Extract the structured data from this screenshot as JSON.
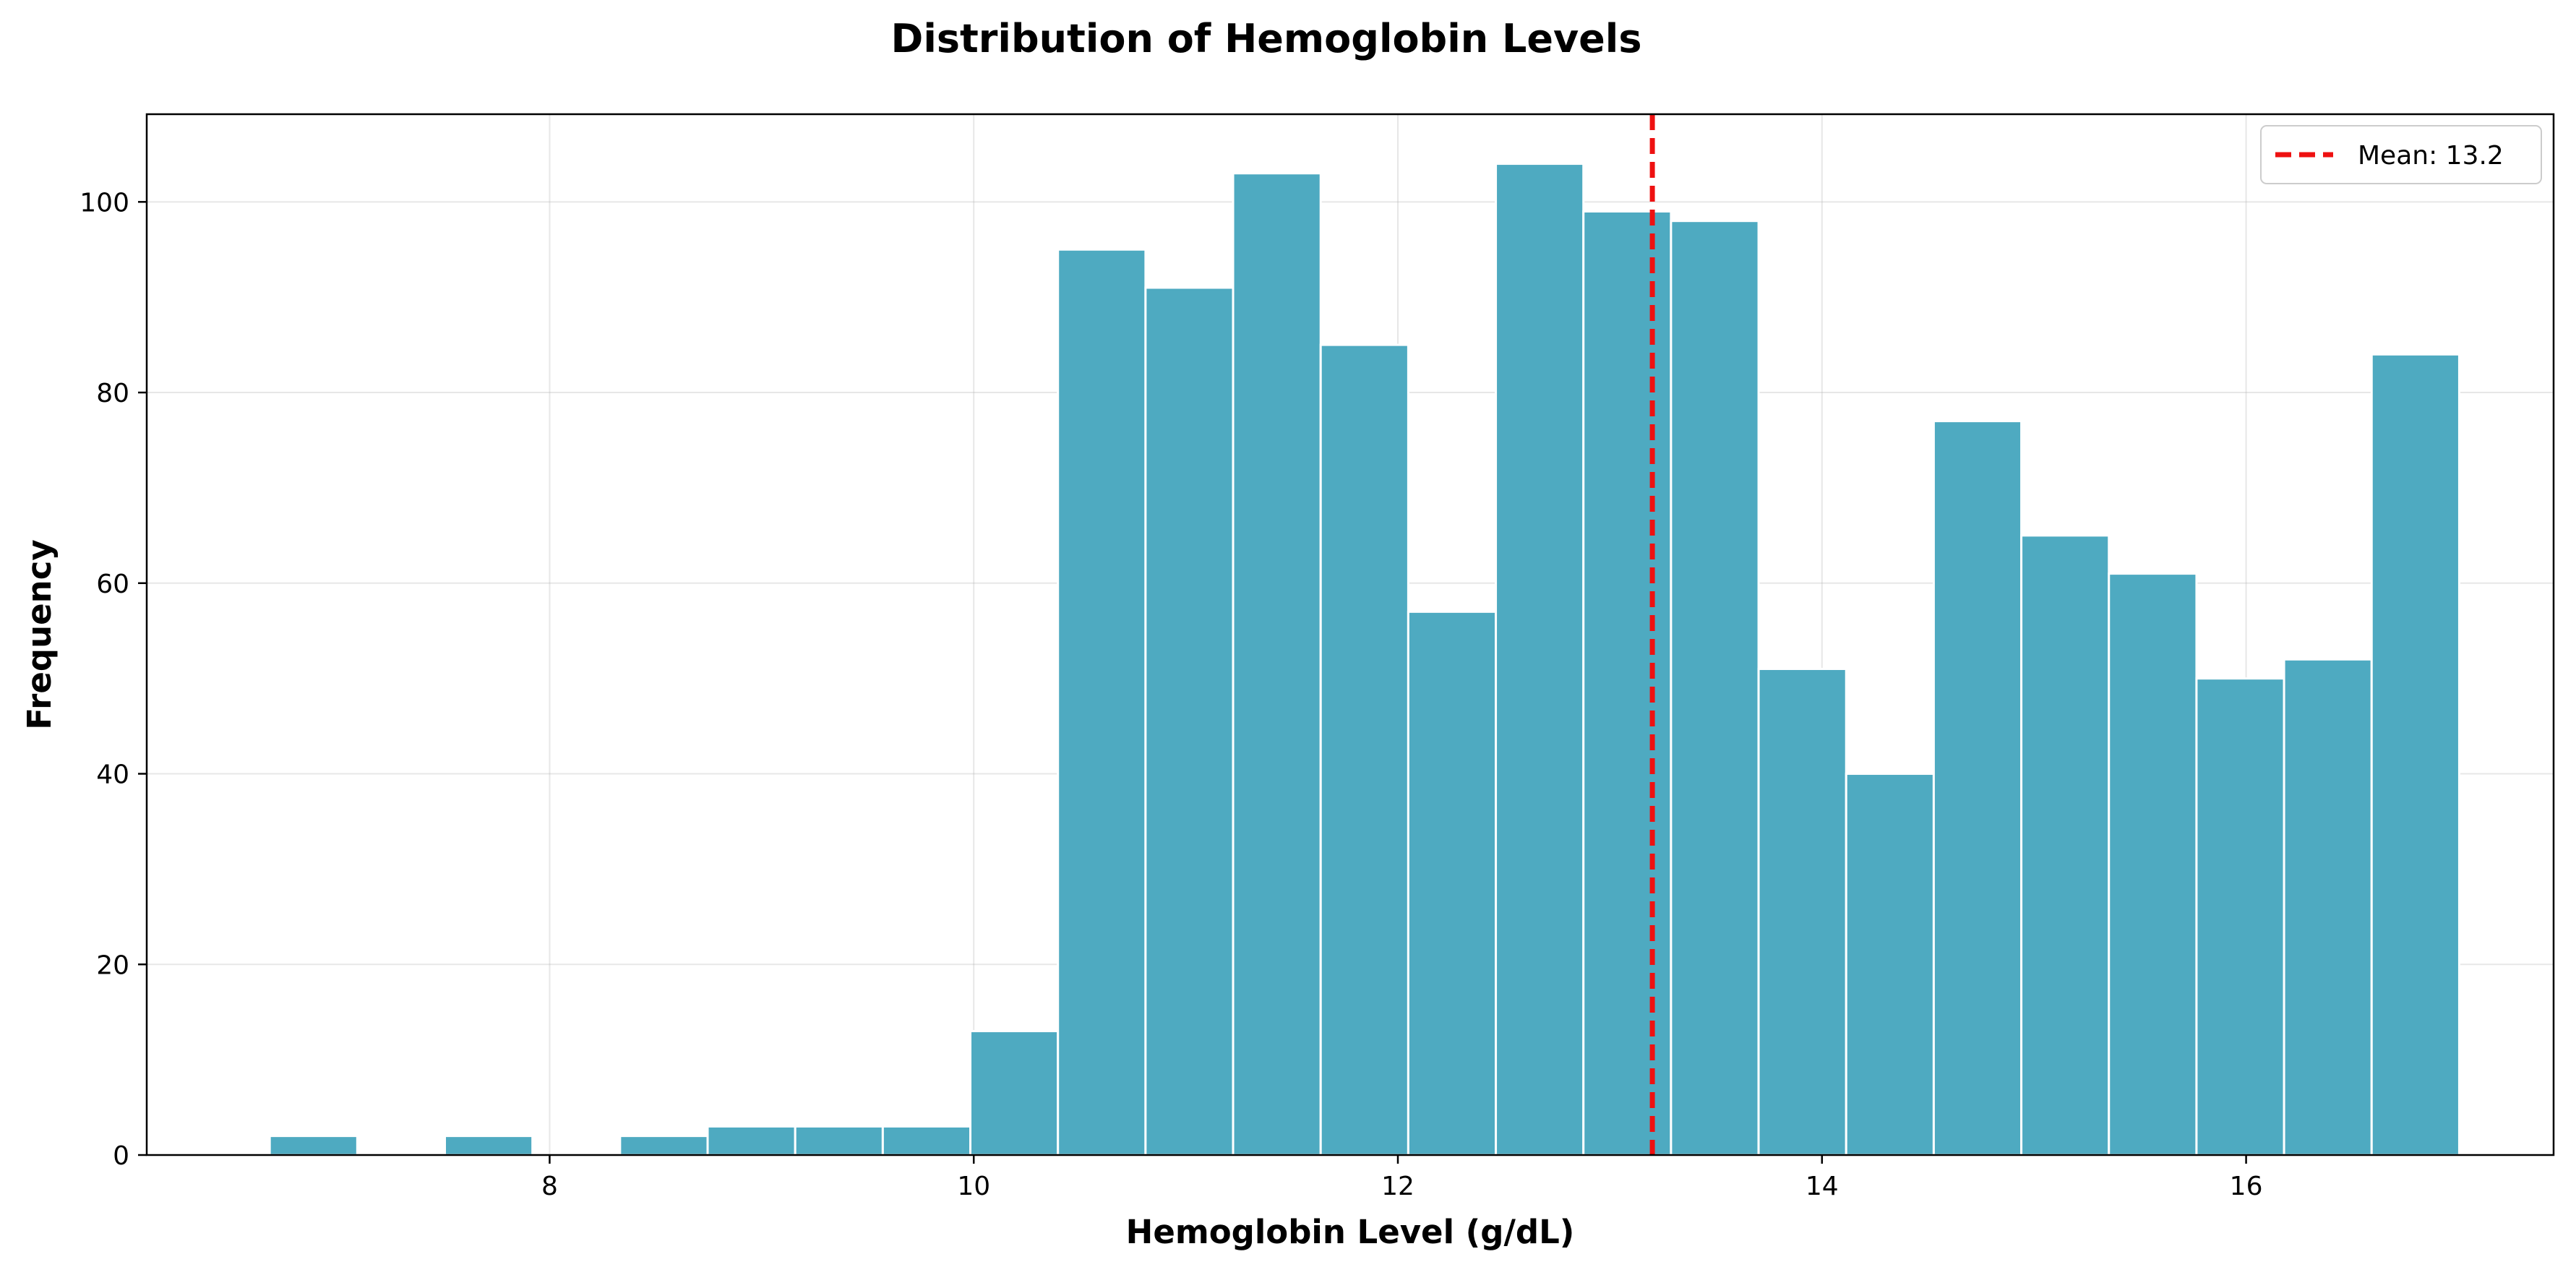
{
  "chart_data": {
    "type": "bar",
    "title": "Distribution of Hemoglobin Levels",
    "xlabel": "Hemoglobin Level (g/dL)",
    "ylabel": "Frequency",
    "xlim": [
      6.1,
      17.45
    ],
    "ylim": [
      0,
      109.2
    ],
    "xticks": [
      8,
      10,
      12,
      14,
      16
    ],
    "yticks": [
      0,
      20,
      40,
      60,
      80,
      100
    ],
    "grid": true,
    "bar_color": "#4eaac1",
    "bin_width": 0.413,
    "bins": [
      {
        "start": 6.68,
        "value": 2
      },
      {
        "start": 7.093,
        "value": 0
      },
      {
        "start": 7.506,
        "value": 2
      },
      {
        "start": 7.919,
        "value": 0
      },
      {
        "start": 8.332,
        "value": 2
      },
      {
        "start": 8.745,
        "value": 3
      },
      {
        "start": 9.158,
        "value": 3
      },
      {
        "start": 9.571,
        "value": 3
      },
      {
        "start": 9.984,
        "value": 13
      },
      {
        "start": 10.397,
        "value": 95
      },
      {
        "start": 10.81,
        "value": 91
      },
      {
        "start": 11.223,
        "value": 103
      },
      {
        "start": 11.636,
        "value": 85
      },
      {
        "start": 12.049,
        "value": 57
      },
      {
        "start": 12.462,
        "value": 104
      },
      {
        "start": 12.875,
        "value": 99
      },
      {
        "start": 13.288,
        "value": 98
      },
      {
        "start": 13.701,
        "value": 51
      },
      {
        "start": 14.114,
        "value": 40
      },
      {
        "start": 14.527,
        "value": 77
      },
      {
        "start": 14.94,
        "value": 65
      },
      {
        "start": 15.353,
        "value": 61
      },
      {
        "start": 15.766,
        "value": 50
      },
      {
        "start": 16.179,
        "value": 52
      },
      {
        "start": 16.592,
        "value": 84
      }
    ],
    "mean": {
      "value": 13.2,
      "label": "Mean: 13.2",
      "color": "#ee1111"
    },
    "legend": {
      "position": "top-right",
      "entries": [
        "Mean: 13.2"
      ]
    }
  }
}
